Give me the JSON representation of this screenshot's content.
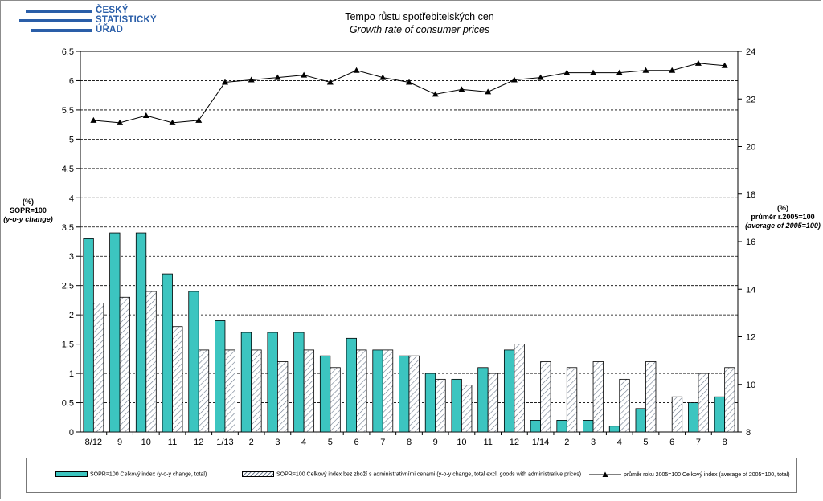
{
  "header": {
    "logo_lines": [
      "ČESKÝ",
      "STATISTICKÝ",
      "ÚŘAD"
    ],
    "title": "Tempo růstu spotřebitelských  cen",
    "subtitle": "Growth rate  of consumer prices"
  },
  "left_axis_label": {
    "line1": "(%)",
    "line2": "SOPR=100",
    "line3": "(y-o-y change)"
  },
  "right_axis_label": {
    "line1": "(%)",
    "line2": "průměr r.2005=100",
    "line3": "(average of 2005=100)"
  },
  "legend": {
    "item1": "SOPR=100 Celkový index (y-o-y change, total)",
    "item2": "SOPR=100 Celkový index bez zboží s administrativními cenami (y-o-y change, total excl. goods with administrative prices)",
    "item3": "průměr roku 2005=100 Celkový index (average of 2005=100, total)"
  },
  "colors": {
    "teal": "#3cc5c0",
    "hatch_bg": "#ffffff",
    "hatch_line": "#6d7a8c",
    "line": "#000000",
    "logo": "#2a5ea8"
  },
  "chart_data": {
    "type": "bar+line",
    "categories": [
      "8/12",
      "9",
      "10",
      "11",
      "12",
      "1/13",
      "2",
      "3",
      "4",
      "5",
      "6",
      "7",
      "8",
      "9",
      "10",
      "11",
      "12",
      "1/14",
      "2",
      "3",
      "4",
      "5",
      "6",
      "7",
      "8"
    ],
    "series": [
      {
        "name": "SOPR=100 Celkový index (y-o-y change, total)",
        "type": "bar",
        "axis": "left",
        "values": [
          3.3,
          3.4,
          3.4,
          2.7,
          2.4,
          1.9,
          1.7,
          1.7,
          1.7,
          1.3,
          1.6,
          1.4,
          1.3,
          1.0,
          0.9,
          1.1,
          1.4,
          0.2,
          0.2,
          0.2,
          0.1,
          0.4,
          0.0,
          0.5,
          0.6
        ]
      },
      {
        "name": "SOPR=100 Celkový index bez zboží s administrativními cenami (y-o-y change, total excl. goods with administrative prices)",
        "type": "bar",
        "axis": "left",
        "values": [
          2.2,
          2.3,
          2.4,
          1.8,
          1.4,
          1.4,
          1.4,
          1.2,
          1.4,
          1.1,
          1.4,
          1.4,
          1.3,
          0.9,
          0.8,
          1.0,
          1.5,
          1.2,
          1.1,
          1.2,
          0.9,
          1.2,
          0.6,
          1.0,
          1.1
        ]
      },
      {
        "name": "průměr roku 2005=100 Celkový index (average of 2005=100, total)",
        "type": "line",
        "axis": "right",
        "values": [
          21.1,
          21.0,
          21.3,
          21.0,
          21.1,
          22.7,
          22.8,
          22.9,
          23.0,
          22.7,
          23.2,
          22.9,
          22.7,
          22.2,
          22.4,
          22.3,
          22.8,
          22.9,
          23.1,
          23.1,
          23.1,
          23.2,
          23.2,
          23.5,
          23.4
        ]
      }
    ],
    "y_left": {
      "min": 0,
      "max": 6.5,
      "step": 0.5,
      "tick_labels": [
        "0",
        "0,5",
        "1",
        "1,5",
        "2",
        "2,5",
        "3",
        "3,5",
        "4",
        "4,5",
        "5",
        "5,5",
        "6",
        "6,5"
      ]
    },
    "y_right": {
      "min": 8,
      "max": 24,
      "step": 2,
      "tick_labels": [
        "8",
        "10",
        "12",
        "14",
        "16",
        "18",
        "20",
        "22",
        "24"
      ]
    },
    "grid": "horizontal-dashed",
    "legend_position": "bottom"
  }
}
